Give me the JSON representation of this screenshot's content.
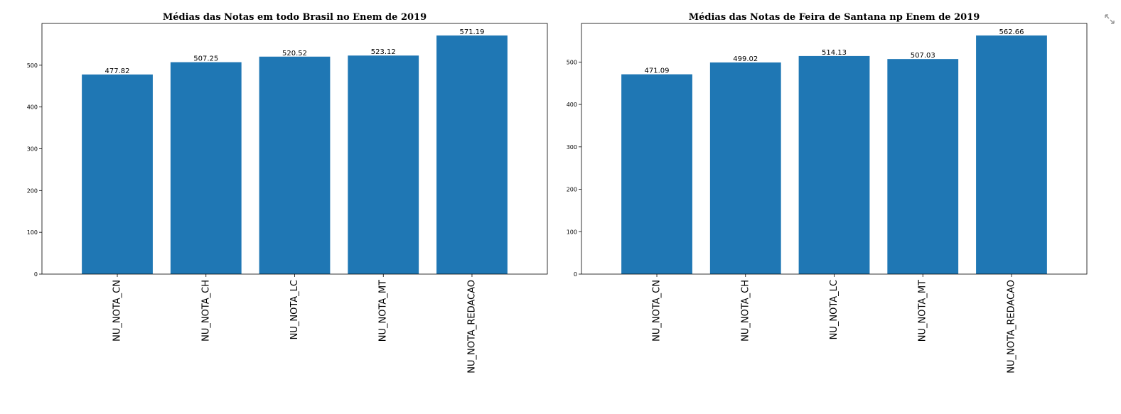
{
  "colors": {
    "bar": "#1f77b4",
    "axis": "#000000",
    "background": "#ffffff"
  },
  "icons": {
    "expand": "expand-icon"
  },
  "chart_data": [
    {
      "type": "bar",
      "title": "Médias das Notas em todo Brasil no Enem de 2019",
      "categories": [
        "NU_NOTA_CN",
        "NU_NOTA_CH",
        "NU_NOTA_LC",
        "NU_NOTA_MT",
        "NU_NOTA_REDACAO"
      ],
      "values": [
        477.82,
        507.25,
        520.52,
        523.12,
        571.19
      ],
      "data_labels": [
        "477.82",
        "507.25",
        "520.52",
        "523.12",
        "571.19"
      ],
      "xlabel": "",
      "ylabel": "",
      "ylim": [
        0,
        600
      ],
      "yticks": [
        0,
        100,
        200,
        300,
        400,
        500
      ],
      "grid": false,
      "legend": "none"
    },
    {
      "type": "bar",
      "title": "Médias das Notas de Feira de Santana np Enem de 2019",
      "categories": [
        "NU_NOTA_CN",
        "NU_NOTA_CH",
        "NU_NOTA_LC",
        "NU_NOTA_MT",
        "NU_NOTA_REDACAO"
      ],
      "values": [
        471.09,
        499.02,
        514.13,
        507.03,
        562.66
      ],
      "data_labels": [
        "471.09",
        "499.02",
        "514.13",
        "507.03",
        "562.66"
      ],
      "xlabel": "",
      "ylabel": "",
      "ylim": [
        0,
        591
      ],
      "yticks": [
        0,
        100,
        200,
        300,
        400,
        500
      ],
      "grid": false,
      "legend": "none"
    }
  ]
}
